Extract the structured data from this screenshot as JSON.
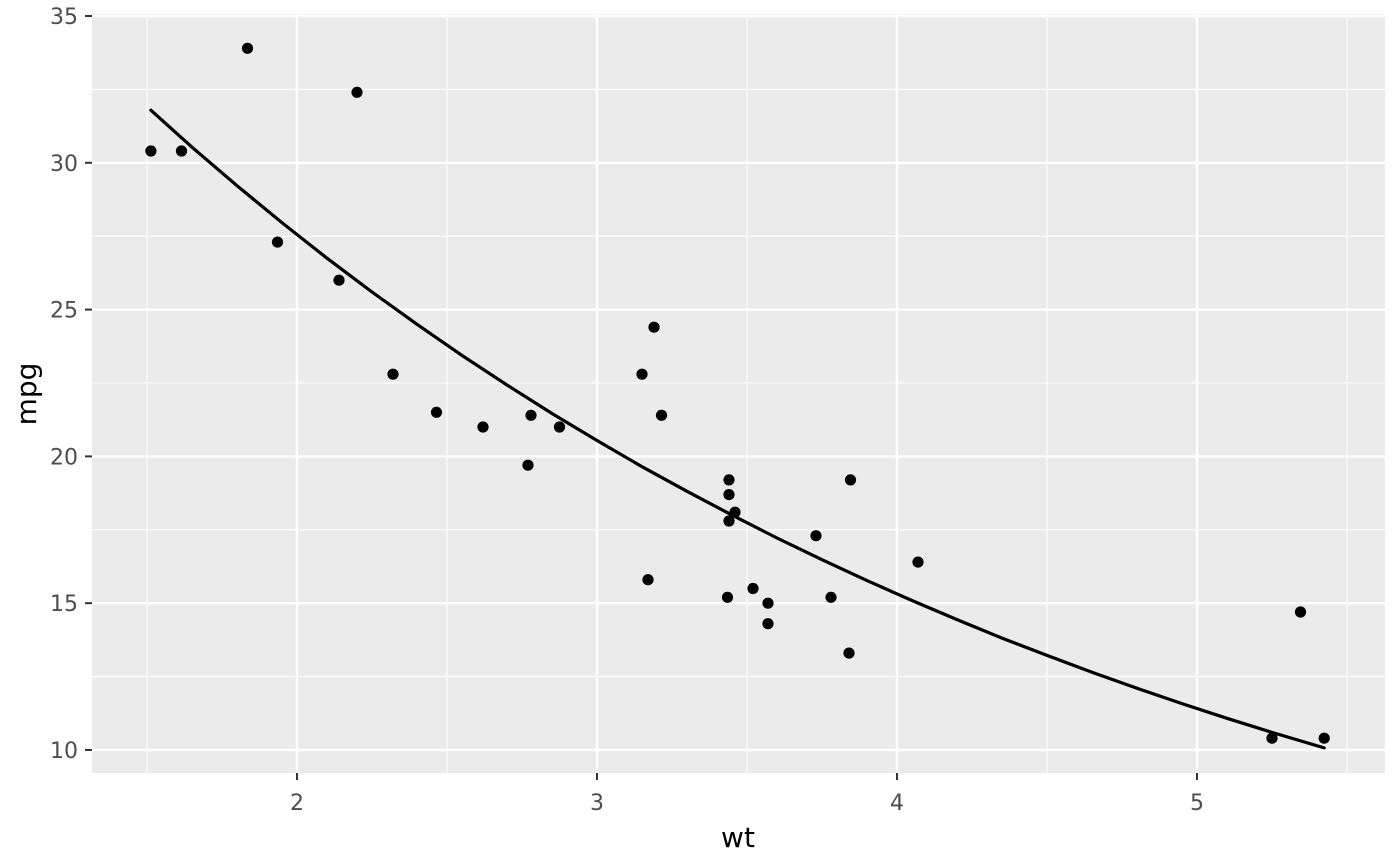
{
  "chart_data": {
    "type": "scatter",
    "title": "",
    "xlabel": "wt",
    "ylabel": "mpg",
    "xlim": [
      1.3167,
      5.6267
    ],
    "ylim": [
      9.216,
      35.068
    ],
    "grid": "major and minor, white on grey panel",
    "legend": "none",
    "x_ticks": {
      "major": [
        2,
        3,
        4,
        5
      ],
      "minor": [
        1.5,
        2.5,
        3.5,
        4.5,
        5.5
      ]
    },
    "y_ticks": {
      "major": [
        10,
        15,
        20,
        25,
        30,
        35
      ],
      "minor": [
        12.5,
        17.5,
        22.5,
        27.5,
        32.5
      ]
    },
    "points": [
      [
        2.62,
        21.0
      ],
      [
        2.875,
        21.0
      ],
      [
        2.32,
        22.8
      ],
      [
        3.215,
        21.4
      ],
      [
        3.44,
        18.7
      ],
      [
        3.46,
        18.1
      ],
      [
        3.57,
        14.3
      ],
      [
        3.19,
        24.4
      ],
      [
        3.15,
        22.8
      ],
      [
        3.44,
        19.2
      ],
      [
        3.44,
        17.8
      ],
      [
        4.07,
        16.4
      ],
      [
        3.73,
        17.3
      ],
      [
        3.78,
        15.2
      ],
      [
        5.25,
        10.4
      ],
      [
        5.424,
        10.4
      ],
      [
        5.345,
        14.7
      ],
      [
        2.2,
        32.4
      ],
      [
        1.615,
        30.4
      ],
      [
        1.835,
        33.9
      ],
      [
        2.465,
        21.5
      ],
      [
        3.52,
        15.5
      ],
      [
        3.435,
        15.2
      ],
      [
        3.84,
        13.3
      ],
      [
        3.845,
        19.2
      ],
      [
        1.935,
        27.3
      ],
      [
        2.14,
        26.0
      ],
      [
        1.513,
        30.4
      ],
      [
        3.17,
        15.8
      ],
      [
        2.77,
        19.7
      ],
      [
        3.57,
        15.0
      ],
      [
        2.78,
        21.4
      ]
    ],
    "smooth_curve": [
      [
        1.513,
        31.79
      ],
      [
        1.65,
        30.53
      ],
      [
        1.8,
        29.22
      ],
      [
        1.95,
        27.96
      ],
      [
        2.1,
        26.75
      ],
      [
        2.25,
        25.6
      ],
      [
        2.4,
        24.5
      ],
      [
        2.55,
        23.44
      ],
      [
        2.7,
        22.43
      ],
      [
        2.85,
        21.46
      ],
      [
        3.0,
        20.54
      ],
      [
        3.15,
        19.65
      ],
      [
        3.3,
        18.81
      ],
      [
        3.45,
        18.0
      ],
      [
        3.6,
        17.22
      ],
      [
        3.75,
        16.48
      ],
      [
        3.9,
        15.77
      ],
      [
        4.05,
        15.09
      ],
      [
        4.2,
        14.44
      ],
      [
        4.35,
        13.81
      ],
      [
        4.5,
        13.22
      ],
      [
        4.65,
        12.65
      ],
      [
        4.8,
        12.1
      ],
      [
        4.95,
        11.58
      ],
      [
        5.1,
        11.08
      ],
      [
        5.25,
        10.6
      ],
      [
        5.424,
        10.07
      ]
    ],
    "colors": {
      "page_bg": "#FFFFFF",
      "panel_bg": "#EBEBEB",
      "grid": "#FFFFFF",
      "point": "#000000",
      "smooth_line": "#000000",
      "tick_label": "#4D4D4D",
      "tick_mark": "#333333",
      "axis_title": "#000000"
    }
  }
}
